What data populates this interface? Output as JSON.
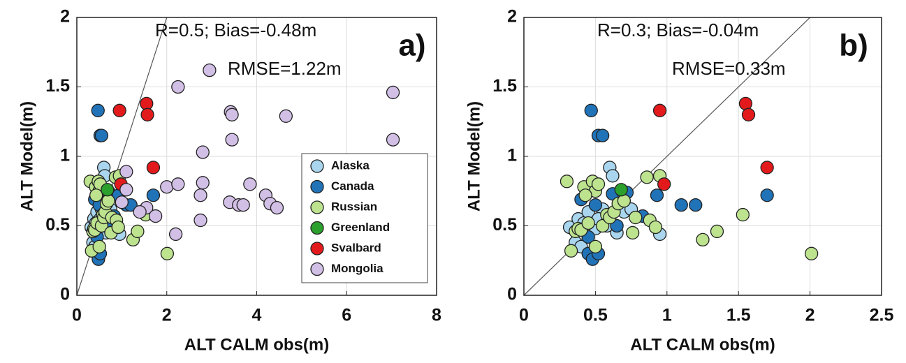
{
  "chart_data": [
    {
      "type": "scatter",
      "xlabel": "ALT CALM obs(m)",
      "ylabel": "ALT Model(m)",
      "annotations": [
        "R=0.5; Bias=-0.48m",
        "RMSE=1.22m",
        "a)"
      ],
      "xlim": [
        0,
        8
      ],
      "xticks": [
        0,
        2,
        4,
        6,
        8
      ],
      "ylim": [
        0,
        2
      ],
      "yticks": [
        0,
        0.5,
        1,
        1.5,
        2
      ],
      "grid": true,
      "identity_line": true,
      "legend": "lower right",
      "series": [
        {
          "name": "Alaska",
          "color": "#a9d6ee",
          "x": [
            0.32,
            0.36,
            0.38,
            0.42,
            0.45,
            0.5,
            0.55,
            0.6,
            0.62,
            0.65,
            0.7,
            0.75,
            0.95,
            0.4,
            0.58,
            0.52
          ],
          "values": [
            0.49,
            0.38,
            0.55,
            0.52,
            0.6,
            0.48,
            0.62,
            0.92,
            0.86,
            0.45,
            0.6,
            0.62,
            0.44,
            0.35,
            0.5,
            0.55
          ]
        },
        {
          "name": "Canada",
          "color": "#2173b8",
          "x": [
            0.47,
            0.52,
            0.55,
            0.4,
            0.45,
            0.48,
            0.5,
            0.52,
            0.62,
            0.7,
            0.72,
            0.83,
            0.93,
            1.1,
            1.2,
            1.7,
            0.65,
            0.45
          ],
          "values": [
            1.33,
            1.15,
            1.15,
            0.69,
            0.3,
            0.26,
            0.65,
            0.3,
            0.73,
            0.72,
            0.74,
            0.57,
            0.72,
            0.65,
            0.65,
            0.72,
            0.5,
            0.42
          ]
        },
        {
          "name": "Russian",
          "color": "#bde38f",
          "x": [
            0.3,
            0.33,
            0.36,
            0.38,
            0.4,
            0.42,
            0.45,
            0.48,
            0.5,
            0.52,
            0.55,
            0.58,
            0.6,
            0.63,
            0.66,
            0.7,
            0.76,
            0.78,
            0.86,
            0.88,
            0.92,
            0.95,
            1.25,
            1.35,
            1.53,
            2.01,
            0.43,
            0.5
          ],
          "values": [
            0.82,
            0.32,
            0.46,
            0.48,
            0.47,
            0.78,
            0.52,
            0.82,
            0.75,
            0.8,
            0.5,
            0.58,
            0.56,
            0.6,
            0.66,
            0.68,
            0.45,
            0.56,
            0.85,
            0.54,
            0.49,
            0.86,
            0.4,
            0.46,
            0.58,
            0.3,
            0.72,
            0.35
          ]
        },
        {
          "name": "Greenland",
          "color": "#2ca02c",
          "x": [
            0.68
          ],
          "values": [
            0.76
          ]
        },
        {
          "name": "Svalbard",
          "color": "#e31a1c",
          "x": [
            0.95,
            1.55,
            1.57,
            1.7,
            0.98
          ],
          "values": [
            1.33,
            1.38,
            1.3,
            0.92,
            0.8
          ]
        },
        {
          "name": "Mongolia",
          "color": "#d2bfe6",
          "x": [
            2.95,
            2.25,
            7.03,
            7.03,
            3.42,
            3.45,
            3.45,
            4.65,
            2.8,
            1.1,
            1.1,
            2.0,
            2.25,
            2.8,
            2.75,
            3.85,
            4.2,
            4.3,
            4.45,
            3.4,
            3.6,
            3.7,
            1.55,
            1.4,
            1.75,
            2.2,
            2.75,
            1.0
          ],
          "values": [
            1.62,
            1.5,
            1.46,
            1.12,
            1.32,
            1.3,
            1.12,
            1.29,
            1.03,
            0.89,
            0.76,
            0.78,
            0.8,
            0.81,
            0.72,
            0.8,
            0.72,
            0.66,
            0.63,
            0.67,
            0.65,
            0.65,
            0.63,
            0.6,
            0.57,
            0.44,
            0.54,
            0.67
          ]
        }
      ]
    },
    {
      "type": "scatter",
      "xlabel": "ALT CALM obs(m)",
      "ylabel": "ALT Model(m)",
      "annotations": [
        "R=0.3; Bias=-0.04m",
        "RMSE=0.33m",
        "b)"
      ],
      "xlim": [
        0,
        2.5
      ],
      "xticks": [
        0,
        0.5,
        1,
        1.5,
        2,
        2.5
      ],
      "ylim": [
        0,
        2
      ],
      "yticks": [
        0,
        0.5,
        1,
        1.5,
        2
      ],
      "grid": true,
      "identity_line": true,
      "series": [
        {
          "color": "#a9d6ee",
          "x": [
            0.32,
            0.36,
            0.38,
            0.42,
            0.45,
            0.5,
            0.55,
            0.6,
            0.62,
            0.65,
            0.7,
            0.75,
            0.95,
            0.4,
            0.58,
            0.52
          ],
          "values": [
            0.49,
            0.38,
            0.55,
            0.52,
            0.6,
            0.48,
            0.62,
            0.92,
            0.86,
            0.45,
            0.6,
            0.62,
            0.44,
            0.35,
            0.5,
            0.55
          ]
        },
        {
          "color": "#2173b8",
          "x": [
            0.47,
            0.52,
            0.55,
            0.4,
            0.45,
            0.48,
            0.5,
            0.52,
            0.62,
            0.7,
            0.72,
            0.83,
            0.93,
            1.1,
            1.2,
            1.7,
            0.65,
            0.45
          ],
          "values": [
            1.33,
            1.15,
            1.15,
            0.69,
            0.3,
            0.26,
            0.65,
            0.3,
            0.73,
            0.72,
            0.74,
            0.57,
            0.72,
            0.65,
            0.65,
            0.72,
            0.5,
            0.42
          ]
        },
        {
          "color": "#bde38f",
          "x": [
            0.3,
            0.33,
            0.36,
            0.38,
            0.4,
            0.42,
            0.45,
            0.48,
            0.5,
            0.52,
            0.55,
            0.58,
            0.6,
            0.63,
            0.66,
            0.7,
            0.76,
            0.78,
            0.86,
            0.88,
            0.92,
            0.95,
            1.25,
            1.35,
            1.53,
            2.01,
            0.43,
            0.5
          ],
          "values": [
            0.82,
            0.32,
            0.46,
            0.48,
            0.47,
            0.78,
            0.52,
            0.82,
            0.75,
            0.8,
            0.5,
            0.58,
            0.56,
            0.6,
            0.66,
            0.68,
            0.45,
            0.56,
            0.85,
            0.54,
            0.49,
            0.86,
            0.4,
            0.46,
            0.58,
            0.3,
            0.72,
            0.35
          ]
        },
        {
          "color": "#2ca02c",
          "x": [
            0.68
          ],
          "values": [
            0.76
          ]
        },
        {
          "color": "#e31a1c",
          "x": [
            0.95,
            1.55,
            1.57,
            1.7,
            0.98
          ],
          "values": [
            1.33,
            1.38,
            1.3,
            0.92,
            0.8
          ]
        }
      ]
    }
  ]
}
